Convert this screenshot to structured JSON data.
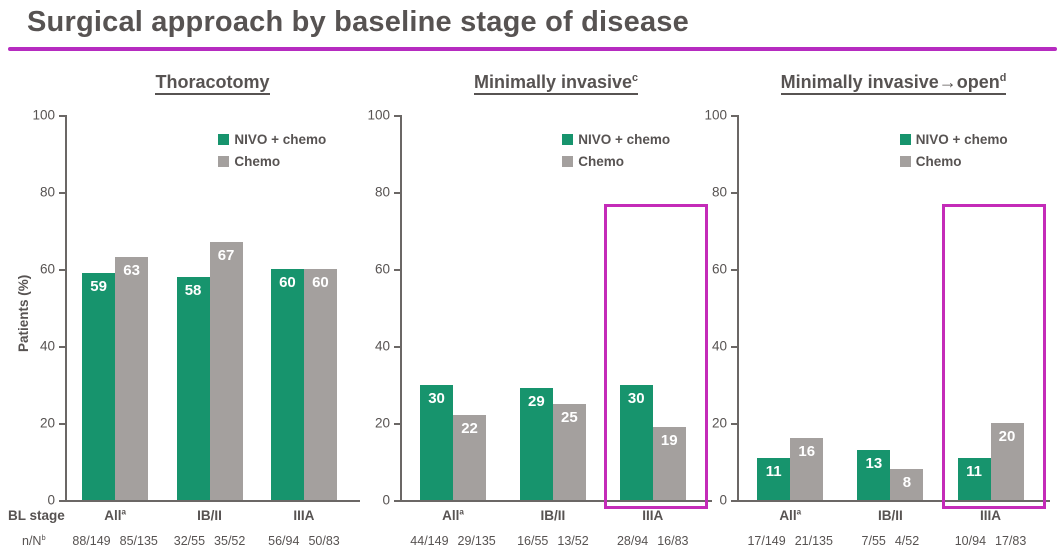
{
  "slide": {
    "title": "Surgical approach by baseline stage of disease",
    "bl_stage_label": "BL stage",
    "n_over_n_label": "n/N",
    "n_over_n_sup": "b",
    "y_axis_label": "Patients (%)"
  },
  "colors": {
    "nivo_green": "#17946d",
    "chemo_gray": "#a4a09e",
    "magenta": "#c42bb8",
    "title_rule_magenta": "#b62bc0",
    "text_gray": "#575352"
  },
  "legend": [
    {
      "label": "NIVO + chemo",
      "color_key": "nivo_green"
    },
    {
      "label": "Chemo",
      "color_key": "chemo_gray"
    }
  ],
  "chart_data": [
    {
      "type": "bar",
      "title": "Thoracotomy",
      "title_sup": "",
      "ylabel": "Patients (%)",
      "ylim": [
        0,
        100
      ],
      "y_ticks": [
        0,
        20,
        40,
        60,
        80,
        100
      ],
      "categories": [
        "All",
        "IB/II",
        "IIIA"
      ],
      "category_sups": [
        "a",
        "",
        ""
      ],
      "series": [
        {
          "name": "NIVO + chemo",
          "values": [
            59,
            58,
            60
          ],
          "n_over_N": [
            "88/149",
            "32/55",
            "56/94"
          ]
        },
        {
          "name": "Chemo",
          "values": [
            63,
            67,
            60
          ],
          "n_over_N": [
            "85/135",
            "35/52",
            "50/83"
          ]
        }
      ],
      "highlighted_category": null
    },
    {
      "type": "bar",
      "title": "Minimally invasive",
      "title_sup": "c",
      "ylabel": "",
      "ylim": [
        0,
        100
      ],
      "y_ticks": [
        0,
        20,
        40,
        60,
        80,
        100
      ],
      "categories": [
        "All",
        "IB/II",
        "IIIA"
      ],
      "category_sups": [
        "a",
        "",
        ""
      ],
      "series": [
        {
          "name": "NIVO + chemo",
          "values": [
            30,
            29,
            30
          ],
          "n_over_N": [
            "44/149",
            "16/55",
            "28/94"
          ]
        },
        {
          "name": "Chemo",
          "values": [
            22,
            25,
            19
          ],
          "n_over_N": [
            "29/135",
            "13/52",
            "16/83"
          ]
        }
      ],
      "highlighted_category": "IIIA"
    },
    {
      "type": "bar",
      "title": "Minimally invasive→open",
      "title_sup": "d",
      "ylabel": "",
      "ylim": [
        0,
        100
      ],
      "y_ticks": [
        0,
        20,
        40,
        60,
        80,
        100
      ],
      "categories": [
        "All",
        "IB/II",
        "IIIA"
      ],
      "category_sups": [
        "a",
        "",
        ""
      ],
      "series": [
        {
          "name": "NIVO + chemo",
          "values": [
            11,
            13,
            11
          ],
          "n_over_N": [
            "17/149",
            "7/55",
            "10/94"
          ]
        },
        {
          "name": "Chemo",
          "values": [
            16,
            8,
            20
          ],
          "n_over_N": [
            "21/135",
            "4/52",
            "17/83"
          ]
        }
      ],
      "highlighted_category": "IIIA"
    }
  ]
}
